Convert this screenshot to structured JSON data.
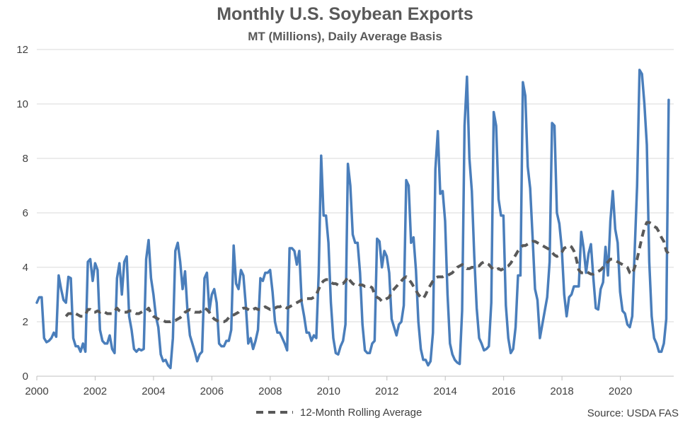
{
  "chart_data": {
    "type": "line",
    "title": "Monthly U.S. Soybean Exports",
    "subtitle": "MT (Millions), Daily Average Basis",
    "source": "Source: USDA FAS",
    "xlabel": "",
    "ylabel": "",
    "x_start": 2000.0,
    "x_step": 0.0833,
    "xlim": [
      2000,
      2021.83
    ],
    "ylim": [
      0,
      12
    ],
    "x_ticks": [
      "2000",
      "2002",
      "2004",
      "2006",
      "2008",
      "2010",
      "2012",
      "2014",
      "2016",
      "2018",
      "2020"
    ],
    "y_ticks": [
      "0",
      "2",
      "4",
      "6",
      "8",
      "10",
      "12"
    ],
    "grid": true,
    "legend_position": "bottom",
    "series": [
      {
        "name": "",
        "color": "#4a7ebb",
        "dashed": false,
        "values": [
          2.7,
          2.9,
          2.9,
          1.4,
          1.25,
          1.3,
          1.4,
          1.6,
          1.45,
          3.7,
          3.2,
          2.8,
          2.7,
          3.65,
          3.6,
          1.4,
          1.1,
          1.1,
          0.9,
          1.2,
          0.9,
          4.2,
          4.3,
          3.5,
          4.15,
          3.9,
          1.7,
          1.3,
          1.2,
          1.2,
          1.5,
          1.0,
          0.85,
          3.6,
          4.15,
          3.0,
          4.2,
          4.4,
          2.2,
          1.7,
          1.0,
          0.9,
          1.0,
          0.95,
          1.0,
          4.3,
          5.0,
          3.6,
          3.0,
          2.2,
          1.8,
          0.8,
          0.55,
          0.6,
          0.4,
          0.3,
          1.4,
          4.6,
          4.9,
          4.2,
          3.2,
          3.85,
          2.4,
          1.5,
          1.2,
          0.9,
          0.55,
          0.8,
          0.9,
          3.6,
          3.8,
          2.4,
          3.0,
          3.2,
          2.7,
          1.2,
          1.1,
          1.1,
          1.3,
          1.3,
          1.7,
          4.8,
          3.4,
          3.2,
          3.9,
          3.7,
          2.6,
          1.2,
          1.4,
          1.0,
          1.3,
          1.7,
          3.6,
          3.5,
          3.8,
          3.8,
          3.9,
          3.1,
          2.0,
          1.6,
          1.6,
          1.4,
          1.2,
          0.95,
          4.7,
          4.7,
          4.6,
          4.1,
          4.6,
          2.7,
          2.2,
          1.6,
          1.6,
          1.3,
          1.5,
          1.4,
          3.8,
          8.1,
          5.9,
          5.9,
          4.9,
          2.7,
          1.4,
          0.85,
          0.8,
          1.1,
          1.3,
          1.9,
          7.8,
          7.0,
          5.2,
          4.9,
          4.9,
          3.8,
          1.9,
          0.95,
          0.85,
          0.85,
          1.2,
          1.3,
          5.05,
          4.95,
          4.0,
          4.6,
          4.4,
          3.8,
          2.1,
          1.8,
          1.5,
          1.9,
          2.0,
          2.6,
          7.2,
          7.0,
          4.9,
          5.1,
          3.9,
          2.0,
          1.0,
          0.6,
          0.6,
          0.4,
          0.55,
          1.6,
          7.6,
          9.0,
          6.7,
          6.8,
          5.7,
          3.0,
          1.2,
          0.8,
          0.6,
          0.5,
          0.45,
          2.4,
          9.2,
          11.0,
          8.0,
          6.8,
          4.4,
          2.5,
          1.4,
          1.2,
          0.95,
          1.0,
          1.1,
          2.7,
          9.7,
          9.2,
          6.5,
          5.9,
          5.9,
          2.6,
          1.4,
          0.85,
          1.0,
          1.8,
          3.7,
          3.7,
          10.8,
          10.3,
          7.7,
          6.9,
          5.1,
          3.2,
          2.8,
          1.4,
          1.9,
          2.4,
          2.9,
          4.2,
          9.3,
          9.2,
          6.0,
          5.6,
          4.7,
          3.0,
          2.2,
          2.9,
          3.0,
          3.3,
          3.3,
          3.3,
          5.3,
          4.7,
          3.8,
          4.5,
          4.85,
          3.6,
          2.5,
          2.45,
          3.2,
          3.45,
          4.75,
          3.7,
          5.7,
          6.8,
          5.4,
          4.9,
          3.1,
          2.4,
          2.3,
          1.9,
          1.8,
          2.2,
          4.6,
          7.0,
          11.25,
          11.1,
          10.0,
          8.5,
          4.2,
          2.2,
          1.4,
          1.2,
          0.9,
          0.9,
          1.2,
          2.1,
          10.15
        ]
      },
      {
        "name": "12-Month Rolling Average",
        "color": "#595959",
        "dashed": true,
        "values": [
          null,
          null,
          null,
          null,
          null,
          null,
          null,
          null,
          null,
          null,
          null,
          null,
          2.2,
          2.3,
          2.3,
          2.35,
          2.3,
          2.25,
          2.2,
          2.2,
          2.25,
          2.45,
          2.45,
          2.35,
          2.35,
          2.4,
          2.35,
          2.4,
          2.35,
          2.3,
          2.3,
          2.3,
          2.4,
          2.5,
          2.4,
          2.35,
          2.35,
          2.35,
          2.4,
          2.4,
          2.35,
          2.3,
          2.3,
          2.35,
          2.4,
          2.4,
          2.5,
          2.3,
          2.2,
          2.15,
          2.1,
          2.05,
          2.05,
          2.0,
          2.0,
          2.0,
          2.05,
          2.05,
          2.1,
          2.15,
          2.25,
          2.35,
          2.4,
          2.45,
          2.4,
          2.35,
          2.35,
          2.35,
          2.4,
          2.5,
          2.45,
          2.35,
          2.2,
          2.1,
          2.05,
          2.0,
          2.0,
          2.0,
          2.05,
          2.15,
          2.25,
          2.25,
          2.3,
          2.35,
          2.45,
          2.5,
          2.5,
          2.45,
          2.4,
          2.45,
          2.5,
          2.45,
          2.45,
          2.5,
          2.55,
          2.5,
          2.45,
          2.5,
          2.5,
          2.55,
          2.55,
          2.6,
          2.55,
          2.5,
          2.55,
          2.6,
          2.65,
          2.7,
          2.75,
          2.8,
          2.85,
          2.85,
          2.85,
          2.85,
          2.9,
          3.0,
          3.2,
          3.4,
          3.5,
          3.55,
          3.55,
          3.45,
          3.4,
          3.4,
          3.35,
          3.4,
          3.4,
          3.5,
          3.65,
          3.5,
          3.4,
          3.35,
          3.4,
          3.35,
          3.35,
          3.3,
          3.3,
          3.3,
          3.25,
          3.0,
          2.9,
          2.85,
          2.75,
          2.8,
          2.85,
          2.9,
          3.1,
          3.2,
          3.3,
          3.4,
          3.5,
          3.6,
          3.65,
          3.55,
          3.45,
          3.3,
          3.15,
          3.0,
          2.9,
          2.85,
          3.0,
          3.2,
          3.35,
          3.5,
          3.6,
          3.65,
          3.65,
          3.65,
          3.7,
          3.7,
          3.75,
          3.8,
          3.9,
          4.0,
          4.05,
          4.1,
          4.05,
          3.95,
          3.95,
          4.0,
          4.0,
          4.05,
          4.05,
          4.15,
          4.2,
          4.15,
          4.1,
          4.0,
          3.9,
          3.9,
          3.95,
          3.9,
          3.95,
          4.0,
          4.05,
          4.15,
          4.3,
          4.45,
          4.6,
          4.7,
          4.8,
          4.8,
          4.85,
          4.9,
          4.95,
          4.95,
          4.9,
          4.85,
          4.8,
          4.75,
          4.7,
          4.65,
          4.55,
          4.45,
          4.4,
          4.45,
          4.55,
          4.7,
          4.75,
          4.8,
          4.75,
          4.6,
          4.3,
          3.9,
          3.8,
          3.8,
          3.85,
          3.8,
          3.75,
          3.75,
          3.8,
          3.85,
          3.9,
          4.0,
          4.1,
          4.2,
          4.3,
          4.3,
          4.25,
          4.2,
          4.15,
          4.1,
          4.05,
          4.0,
          3.8,
          3.75,
          4.0,
          4.3,
          4.7,
          5.1,
          5.45,
          5.65,
          5.65,
          5.6,
          5.5,
          5.45,
          5.3,
          5.1,
          4.95,
          4.6,
          4.5
        ]
      }
    ]
  }
}
